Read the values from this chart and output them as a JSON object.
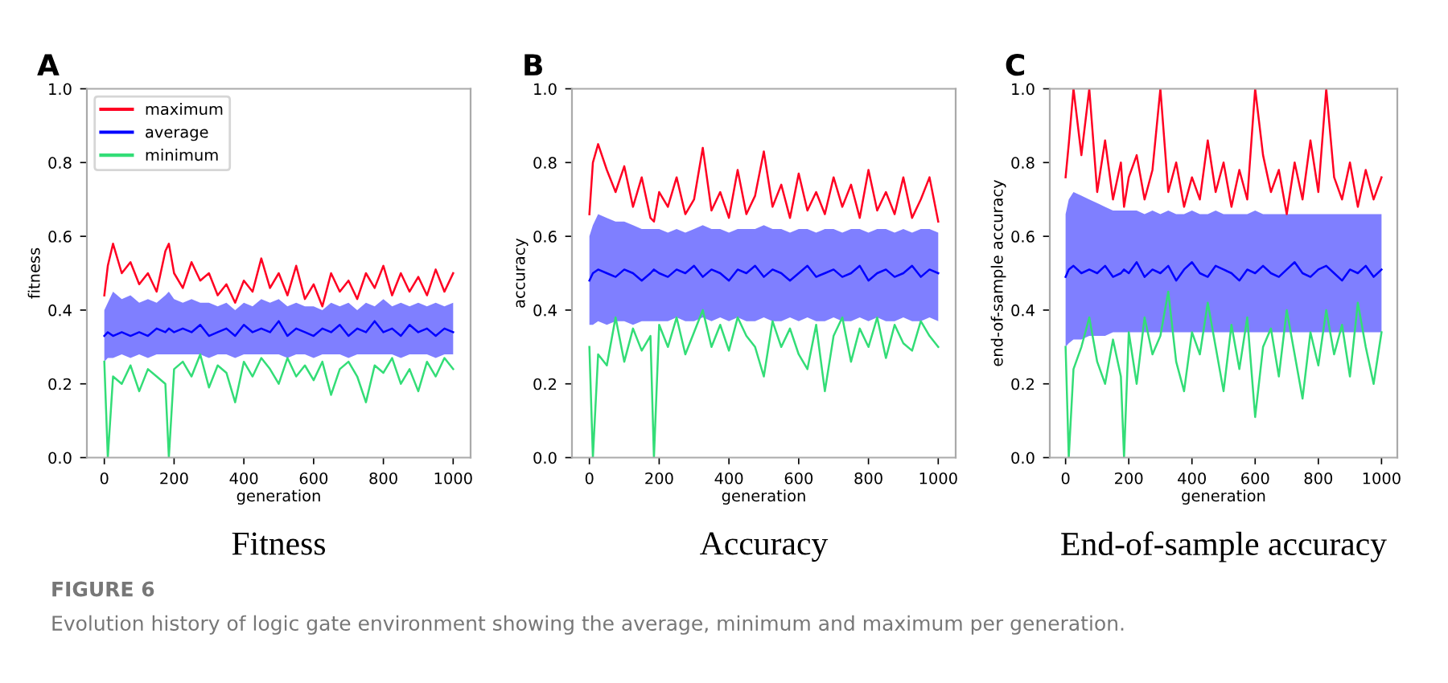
{
  "chart_data": [
    {
      "type": "line",
      "title": "A",
      "xlabel": "generation",
      "ylabel": "fitness",
      "legend": "top left",
      "grid": false,
      "marker": "none",
      "line_style": "solid",
      "x": [
        0,
        10,
        25,
        50,
        75,
        100,
        125,
        150,
        175,
        185,
        200,
        225,
        250,
        275,
        300,
        325,
        350,
        375,
        400,
        425,
        450,
        475,
        500,
        525,
        550,
        575,
        600,
        625,
        650,
        675,
        700,
        725,
        750,
        775,
        800,
        825,
        850,
        875,
        900,
        925,
        950,
        975,
        1000
      ],
      "xlim": [
        -50,
        1050
      ],
      "xticks": [
        0,
        200,
        400,
        600,
        800,
        1000
      ],
      "ylim": [
        0,
        1
      ],
      "yticks": [
        {
          "value": 0,
          "label": "0.0"
        },
        {
          "value": 0.2,
          "label": "0.2"
        },
        {
          "value": 0.4,
          "label": "0.4"
        },
        {
          "value": 0.6,
          "label": "0.6"
        },
        {
          "value": 0.8,
          "label": "0.8"
        },
        {
          "value": 1,
          "label": "1.0"
        }
      ],
      "series": [
        {
          "name": "maximum",
          "color": "#ff0022",
          "values": [
            0.44,
            0.52,
            0.58,
            0.5,
            0.53,
            0.47,
            0.5,
            0.45,
            0.56,
            0.58,
            0.5,
            0.46,
            0.53,
            0.48,
            0.5,
            0.44,
            0.47,
            0.42,
            0.48,
            0.45,
            0.54,
            0.46,
            0.5,
            0.44,
            0.52,
            0.43,
            0.47,
            0.41,
            0.5,
            0.45,
            0.48,
            0.43,
            0.5,
            0.46,
            0.52,
            0.44,
            0.5,
            0.45,
            0.49,
            0.44,
            0.51,
            0.45,
            0.5
          ]
        },
        {
          "name": "average",
          "color": "#0000ff",
          "values": [
            0.33,
            0.34,
            0.33,
            0.34,
            0.33,
            0.34,
            0.33,
            0.35,
            0.34,
            0.35,
            0.34,
            0.35,
            0.34,
            0.36,
            0.33,
            0.34,
            0.35,
            0.33,
            0.36,
            0.34,
            0.35,
            0.34,
            0.37,
            0.33,
            0.35,
            0.34,
            0.33,
            0.35,
            0.34,
            0.36,
            0.33,
            0.35,
            0.34,
            0.37,
            0.34,
            0.35,
            0.33,
            0.36,
            0.34,
            0.35,
            0.33,
            0.35,
            0.34
          ],
          "lower": [
            0.26,
            0.27,
            0.27,
            0.28,
            0.27,
            0.28,
            0.27,
            0.28,
            0.28,
            0.28,
            0.28,
            0.28,
            0.28,
            0.28,
            0.27,
            0.28,
            0.28,
            0.27,
            0.28,
            0.28,
            0.28,
            0.28,
            0.28,
            0.27,
            0.28,
            0.28,
            0.27,
            0.28,
            0.28,
            0.28,
            0.27,
            0.28,
            0.28,
            0.28,
            0.28,
            0.28,
            0.27,
            0.28,
            0.28,
            0.28,
            0.27,
            0.28,
            0.28
          ],
          "upper": [
            0.4,
            0.42,
            0.45,
            0.43,
            0.44,
            0.42,
            0.43,
            0.42,
            0.44,
            0.45,
            0.43,
            0.42,
            0.43,
            0.42,
            0.42,
            0.41,
            0.42,
            0.4,
            0.42,
            0.41,
            0.43,
            0.42,
            0.43,
            0.41,
            0.42,
            0.41,
            0.41,
            0.4,
            0.42,
            0.41,
            0.42,
            0.4,
            0.42,
            0.41,
            0.43,
            0.41,
            0.42,
            0.41,
            0.42,
            0.41,
            0.42,
            0.41,
            0.42
          ]
        },
        {
          "name": "minimum",
          "color": "#33dd77",
          "values": [
            0.26,
            0.0,
            0.22,
            0.2,
            0.25,
            0.18,
            0.24,
            0.22,
            0.2,
            0.0,
            0.24,
            0.26,
            0.22,
            0.28,
            0.19,
            0.25,
            0.23,
            0.15,
            0.26,
            0.22,
            0.27,
            0.24,
            0.2,
            0.27,
            0.22,
            0.25,
            0.21,
            0.26,
            0.17,
            0.24,
            0.26,
            0.22,
            0.15,
            0.25,
            0.23,
            0.27,
            0.2,
            0.24,
            0.18,
            0.26,
            0.22,
            0.27,
            0.24
          ]
        }
      ],
      "annotations": [
        "Fitness",
        "FIGURE 6",
        "Evolution history of logic gate environment showing the average, minimum and maximum per generation."
      ]
    },
    {
      "type": "line",
      "title": "B",
      "xlabel": "generation",
      "ylabel": "accuracy",
      "grid": false,
      "marker": "none",
      "line_style": "solid",
      "x": [
        0,
        10,
        25,
        50,
        75,
        100,
        125,
        150,
        175,
        185,
        200,
        225,
        250,
        275,
        300,
        325,
        350,
        375,
        400,
        425,
        450,
        475,
        500,
        525,
        550,
        575,
        600,
        625,
        650,
        675,
        700,
        725,
        750,
        775,
        800,
        825,
        850,
        875,
        900,
        925,
        950,
        975,
        1000
      ],
      "xlim": [
        -50,
        1050
      ],
      "xticks": [
        0,
        200,
        400,
        600,
        800,
        1000
      ],
      "ylim": [
        0,
        1
      ],
      "yticks": [
        {
          "value": 0,
          "label": "0.0"
        },
        {
          "value": 0.2,
          "label": "0.2"
        },
        {
          "value": 0.4,
          "label": "0.4"
        },
        {
          "value": 0.6,
          "label": "0.6"
        },
        {
          "value": 0.8,
          "label": "0.8"
        },
        {
          "value": 1,
          "label": "1.0"
        }
      ],
      "series": [
        {
          "color": "#ff0022",
          "values": [
            0.66,
            0.8,
            0.85,
            0.78,
            0.72,
            0.79,
            0.68,
            0.76,
            0.65,
            0.64,
            0.72,
            0.68,
            0.76,
            0.66,
            0.7,
            0.84,
            0.67,
            0.72,
            0.65,
            0.78,
            0.66,
            0.71,
            0.83,
            0.68,
            0.74,
            0.65,
            0.77,
            0.67,
            0.72,
            0.66,
            0.76,
            0.68,
            0.74,
            0.65,
            0.78,
            0.67,
            0.72,
            0.66,
            0.76,
            0.65,
            0.7,
            0.76,
            0.64
          ]
        },
        {
          "color": "#0000ff",
          "values": [
            0.48,
            0.5,
            0.51,
            0.5,
            0.49,
            0.51,
            0.5,
            0.48,
            0.5,
            0.51,
            0.5,
            0.49,
            0.51,
            0.5,
            0.52,
            0.49,
            0.51,
            0.5,
            0.48,
            0.51,
            0.5,
            0.52,
            0.49,
            0.51,
            0.5,
            0.48,
            0.5,
            0.52,
            0.49,
            0.5,
            0.51,
            0.49,
            0.5,
            0.52,
            0.48,
            0.5,
            0.51,
            0.49,
            0.5,
            0.52,
            0.49,
            0.51,
            0.5
          ],
          "lower": [
            0.36,
            0.36,
            0.37,
            0.36,
            0.37,
            0.37,
            0.36,
            0.37,
            0.37,
            0.37,
            0.37,
            0.37,
            0.38,
            0.37,
            0.37,
            0.38,
            0.37,
            0.38,
            0.37,
            0.38,
            0.37,
            0.37,
            0.38,
            0.37,
            0.37,
            0.38,
            0.37,
            0.38,
            0.37,
            0.37,
            0.38,
            0.37,
            0.37,
            0.38,
            0.37,
            0.38,
            0.37,
            0.37,
            0.38,
            0.37,
            0.37,
            0.38,
            0.37
          ],
          "upper": [
            0.6,
            0.63,
            0.66,
            0.65,
            0.64,
            0.64,
            0.63,
            0.62,
            0.62,
            0.62,
            0.62,
            0.61,
            0.62,
            0.61,
            0.62,
            0.63,
            0.62,
            0.62,
            0.61,
            0.62,
            0.62,
            0.62,
            0.63,
            0.62,
            0.62,
            0.61,
            0.62,
            0.62,
            0.61,
            0.62,
            0.62,
            0.61,
            0.62,
            0.62,
            0.61,
            0.62,
            0.62,
            0.61,
            0.62,
            0.61,
            0.62,
            0.62,
            0.61
          ]
        },
        {
          "color": "#33dd77",
          "values": [
            0.3,
            0.0,
            0.28,
            0.25,
            0.38,
            0.26,
            0.35,
            0.29,
            0.33,
            0.0,
            0.36,
            0.3,
            0.38,
            0.28,
            0.34,
            0.4,
            0.3,
            0.36,
            0.29,
            0.38,
            0.33,
            0.3,
            0.22,
            0.37,
            0.3,
            0.35,
            0.28,
            0.24,
            0.36,
            0.18,
            0.33,
            0.38,
            0.26,
            0.35,
            0.3,
            0.38,
            0.27,
            0.36,
            0.31,
            0.29,
            0.37,
            0.33,
            0.3
          ]
        }
      ],
      "annotations": [
        "Accuracy"
      ]
    },
    {
      "type": "line",
      "title": "C",
      "xlabel": "generation",
      "ylabel": "end-of-sample accuracy",
      "grid": false,
      "marker": "none",
      "line_style": "solid",
      "x": [
        0,
        10,
        25,
        50,
        75,
        100,
        125,
        150,
        175,
        185,
        200,
        225,
        250,
        275,
        300,
        325,
        350,
        375,
        400,
        425,
        450,
        475,
        500,
        525,
        550,
        575,
        600,
        625,
        650,
        675,
        700,
        725,
        750,
        775,
        800,
        825,
        850,
        875,
        900,
        925,
        950,
        975,
        1000
      ],
      "xlim": [
        -50,
        1050
      ],
      "xticks": [
        0,
        200,
        400,
        600,
        800,
        1000
      ],
      "ylim": [
        0,
        1
      ],
      "yticks": [
        {
          "value": 0,
          "label": "0.0"
        },
        {
          "value": 0.2,
          "label": "0.2"
        },
        {
          "value": 0.4,
          "label": "0.4"
        },
        {
          "value": 0.6,
          "label": "0.6"
        },
        {
          "value": 0.8,
          "label": "0.8"
        },
        {
          "value": 1,
          "label": "1.0"
        }
      ],
      "series": [
        {
          "color": "#ff0022",
          "values": [
            0.76,
            0.85,
            1.0,
            0.82,
            1.0,
            0.72,
            0.86,
            0.7,
            0.8,
            0.68,
            0.76,
            0.82,
            0.7,
            0.78,
            1.0,
            0.72,
            0.8,
            0.68,
            0.76,
            0.7,
            0.86,
            0.72,
            0.8,
            0.68,
            0.78,
            0.7,
            1.0,
            0.82,
            0.72,
            0.78,
            0.66,
            0.8,
            0.7,
            0.86,
            0.72,
            1.0,
            0.76,
            0.7,
            0.8,
            0.68,
            0.78,
            0.7,
            0.76
          ]
        },
        {
          "color": "#0000ff",
          "values": [
            0.49,
            0.51,
            0.52,
            0.5,
            0.51,
            0.5,
            0.52,
            0.49,
            0.5,
            0.51,
            0.5,
            0.53,
            0.49,
            0.51,
            0.5,
            0.52,
            0.48,
            0.51,
            0.53,
            0.5,
            0.49,
            0.52,
            0.51,
            0.5,
            0.48,
            0.51,
            0.5,
            0.52,
            0.5,
            0.49,
            0.51,
            0.53,
            0.5,
            0.49,
            0.51,
            0.52,
            0.5,
            0.48,
            0.51,
            0.5,
            0.52,
            0.49,
            0.51
          ],
          "lower": [
            0.3,
            0.31,
            0.32,
            0.32,
            0.33,
            0.33,
            0.33,
            0.34,
            0.34,
            0.34,
            0.34,
            0.34,
            0.34,
            0.34,
            0.34,
            0.34,
            0.34,
            0.34,
            0.34,
            0.34,
            0.34,
            0.34,
            0.34,
            0.34,
            0.34,
            0.34,
            0.34,
            0.34,
            0.34,
            0.34,
            0.34,
            0.34,
            0.34,
            0.34,
            0.34,
            0.34,
            0.34,
            0.34,
            0.34,
            0.34,
            0.34,
            0.34,
            0.34
          ],
          "upper": [
            0.66,
            0.7,
            0.72,
            0.71,
            0.7,
            0.69,
            0.68,
            0.67,
            0.67,
            0.67,
            0.67,
            0.67,
            0.66,
            0.67,
            0.66,
            0.67,
            0.66,
            0.66,
            0.67,
            0.66,
            0.66,
            0.67,
            0.66,
            0.66,
            0.66,
            0.66,
            0.67,
            0.66,
            0.66,
            0.66,
            0.66,
            0.66,
            0.66,
            0.66,
            0.66,
            0.66,
            0.66,
            0.66,
            0.66,
            0.66,
            0.66,
            0.66,
            0.66
          ]
        },
        {
          "color": "#33dd77",
          "values": [
            0.3,
            0.0,
            0.24,
            0.3,
            0.38,
            0.26,
            0.2,
            0.32,
            0.22,
            0.0,
            0.34,
            0.2,
            0.38,
            0.28,
            0.33,
            0.45,
            0.26,
            0.18,
            0.34,
            0.28,
            0.42,
            0.3,
            0.18,
            0.36,
            0.24,
            0.38,
            0.11,
            0.3,
            0.35,
            0.22,
            0.4,
            0.28,
            0.16,
            0.34,
            0.25,
            0.4,
            0.28,
            0.36,
            0.22,
            0.42,
            0.3,
            0.2,
            0.34
          ]
        }
      ],
      "annotations": [
        "End-of-sample accuracy"
      ]
    }
  ]
}
